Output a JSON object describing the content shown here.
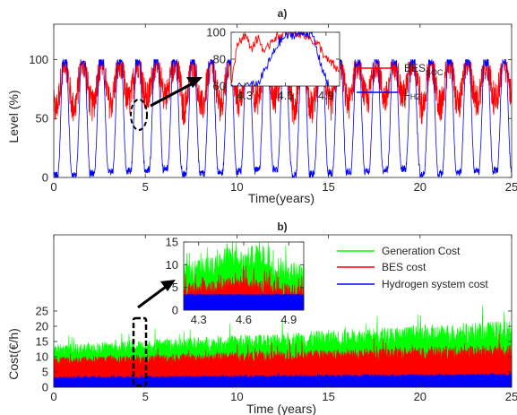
{
  "chart_data": [
    {
      "type": "line",
      "title": "a)",
      "xlabel": "Time(years)",
      "ylabel": "Level (%)",
      "xlim": [
        0,
        25
      ],
      "ylim": [
        0,
        130
      ],
      "xticks": [
        "0",
        "5",
        "10",
        "15",
        "20",
        "25"
      ],
      "yticks": [
        "0",
        "50",
        "100"
      ],
      "grid": false,
      "legend_position": "top-right",
      "legend": [
        {
          "base": "BES",
          "sub": "SOC",
          "color": "#ff0000"
        },
        {
          "base": "L",
          "sub": "H2",
          "color": "#0000ff"
        }
      ],
      "series": [
        {
          "name": "BES_SOC",
          "color": "#ff0000",
          "period": 1,
          "min": [
            35,
            55
          ],
          "max": [
            96,
            100
          ]
        },
        {
          "name": "L_H2",
          "color": "#0000ff",
          "period": 1,
          "min": [
            2,
            8
          ],
          "max": [
            96,
            100
          ]
        }
      ],
      "highlight": {
        "x": 4.6,
        "y": 92,
        "shape": "dashed ellipse"
      },
      "inset": {
        "xlim": [
          4.2,
          5.0
        ],
        "ylim": [
          60,
          100
        ],
        "xticks": [
          "4.3",
          "4.6",
          "4.9"
        ],
        "yticks": [
          "60",
          "80",
          "100"
        ],
        "series": [
          {
            "name": "BES_SOC",
            "color": "#ff0000",
            "values": [
              [
                4.2,
                63
              ],
              [
                4.25,
                92
              ],
              [
                4.3,
                98
              ],
              [
                4.35,
                88
              ],
              [
                4.4,
                96
              ],
              [
                4.45,
                84
              ],
              [
                4.5,
                95
              ],
              [
                4.55,
                97
              ],
              [
                4.6,
                99
              ],
              [
                4.65,
                100
              ],
              [
                4.7,
                99
              ],
              [
                4.75,
                98
              ],
              [
                4.8,
                94
              ],
              [
                4.85,
                90
              ],
              [
                4.9,
                80
              ],
              [
                4.95,
                76
              ],
              [
                5.0,
                70
              ]
            ]
          },
          {
            "name": "L_H2",
            "color": "#0000ff",
            "values": [
              [
                4.2,
                60
              ],
              [
                4.35,
                60
              ],
              [
                4.4,
                62
              ],
              [
                4.45,
                72
              ],
              [
                4.5,
                82
              ],
              [
                4.55,
                92
              ],
              [
                4.6,
                97
              ],
              [
                4.65,
                98
              ],
              [
                4.7,
                99
              ],
              [
                4.75,
                100
              ],
              [
                4.8,
                98
              ],
              [
                4.85,
                80
              ],
              [
                4.9,
                65
              ],
              [
                4.92,
                60
              ]
            ]
          }
        ]
      }
    },
    {
      "type": "area",
      "title": "b)",
      "xlabel": "Time (years)",
      "ylabel": "Cost(€/h)",
      "xlim": [
        0,
        25
      ],
      "ylim": [
        0,
        50
      ],
      "xticks": [
        "0",
        "5",
        "10",
        "15",
        "20",
        "25"
      ],
      "yticks": [
        "0",
        "5",
        "10",
        "15",
        "20",
        "25"
      ],
      "grid": false,
      "legend_position": "top-right",
      "legend": [
        {
          "label": "Generation Cost",
          "color": "#00ff00"
        },
        {
          "label": "BES cost",
          "color": "#ff0000"
        },
        {
          "label": "Hydrogen system cost",
          "color": "#0000ff"
        }
      ],
      "series": [
        {
          "name": "Generation Cost",
          "color": "#00ff00",
          "start": [
            10,
            14
          ],
          "end": [
            14,
            22
          ]
        },
        {
          "name": "BES cost",
          "color": "#ff0000",
          "start": [
            7,
            10
          ],
          "end": [
            9,
            14
          ]
        },
        {
          "name": "Hydrogen system cost",
          "color": "#0000ff",
          "start": [
            2.5,
            3.5
          ],
          "end": [
            3.5,
            4.5
          ]
        }
      ],
      "highlight": {
        "x": 4.7,
        "y": 11,
        "shape": "dashed rectangle"
      },
      "inset": {
        "xlim": [
          4.2,
          5.0
        ],
        "ylim": [
          0,
          15
        ],
        "xticks": [
          "4.3",
          "4.6",
          "4.9"
        ],
        "yticks": [
          "0",
          "5",
          "10",
          "15"
        ],
        "series": [
          {
            "name": "Generation Cost",
            "color": "#00ff00",
            "values": [
              [
                4.2,
                9
              ],
              [
                4.3,
                10
              ],
              [
                4.4,
                11
              ],
              [
                4.5,
                13
              ],
              [
                4.6,
                12
              ],
              [
                4.7,
                14
              ],
              [
                4.8,
                11
              ],
              [
                4.9,
                10
              ],
              [
                5.0,
                9
              ]
            ]
          },
          {
            "name": "BES cost",
            "color": "#ff0000",
            "values": [
              [
                4.2,
                5
              ],
              [
                4.3,
                6
              ],
              [
                4.4,
                6
              ],
              [
                4.5,
                7
              ],
              [
                4.6,
                7
              ],
              [
                4.7,
                6
              ],
              [
                4.8,
                6
              ],
              [
                4.9,
                5
              ],
              [
                5.0,
                5
              ]
            ]
          },
          {
            "name": "Hydrogen system cost",
            "color": "#0000ff",
            "values": [
              [
                4.2,
                3.5
              ],
              [
                5.0,
                3.5
              ]
            ]
          }
        ]
      }
    }
  ]
}
